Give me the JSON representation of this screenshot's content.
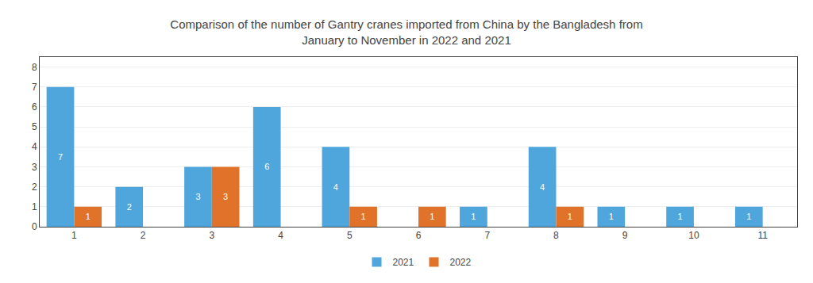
{
  "chart_data": {
    "type": "bar",
    "title": "Comparison of the number of Gantry cranes imported from China by the Bangladesh from\nJanuary to November in 2022 and 2021",
    "categories": [
      1,
      2,
      3,
      4,
      5,
      6,
      7,
      8,
      9,
      10,
      11
    ],
    "series": [
      {
        "name": "2021",
        "color": "#4EA6DC",
        "values": [
          7,
          2,
          3,
          6,
          4,
          0,
          1,
          4,
          1,
          1,
          1
        ]
      },
      {
        "name": "2022",
        "color": "#E0722A",
        "values": [
          1,
          0,
          3,
          0,
          1,
          1,
          0,
          1,
          0,
          0,
          0
        ]
      }
    ],
    "ylim": [
      0,
      8.5
    ],
    "yticks": [
      0,
      1,
      2,
      3,
      4,
      5,
      6,
      7,
      8
    ],
    "grid": true,
    "legend": "bottom",
    "data_labels": true
  }
}
